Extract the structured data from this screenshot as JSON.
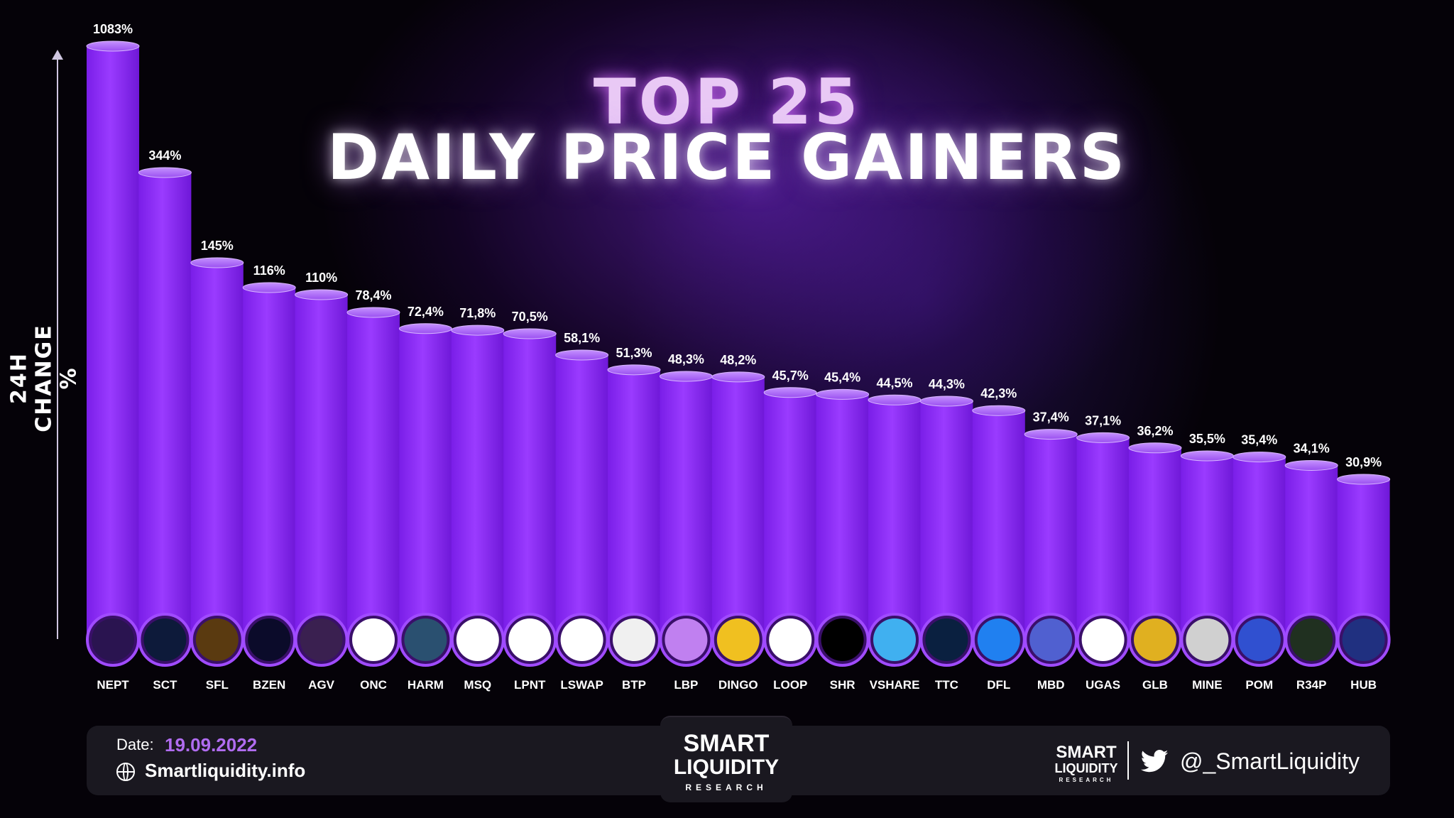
{
  "title_line1": "TOP 25",
  "title_line2": "DAILY PRICE GAINERS",
  "footer": {
    "date_label": "Date:",
    "date_value": "19.09.2022",
    "website": "Smartliquidity.info",
    "logo_line1": "SMART",
    "logo_line2": "LIQUIDITY",
    "logo_line3": "RESEARCH",
    "twitter_handle": "@_SmartLiquidity"
  },
  "colors": {
    "bar": "#8f2ef6",
    "bar_light": "#b372ff",
    "accent": "#b06cf0",
    "background": "#050208"
  },
  "chart_data": {
    "type": "bar",
    "title": "TOP 25 DAILY PRICE GAINERS",
    "ylabel": "24H CHANGE %",
    "xlabel": "",
    "categories": [
      "NEPT",
      "SCT",
      "SFL",
      "BZEN",
      "AGV",
      "ONC",
      "HARM",
      "MSQ",
      "LPNT",
      "LSWAP",
      "BTP",
      "LBP",
      "DINGO",
      "LOOP",
      "SHR",
      "VSHARE",
      "TTC",
      "DFL",
      "MBD",
      "UGAS",
      "GLB",
      "MINE",
      "POM",
      "R34P",
      "HUB"
    ],
    "values": [
      1083,
      344,
      145,
      116,
      110,
      78.4,
      72.4,
      71.8,
      70.5,
      58.1,
      51.3,
      48.3,
      48.2,
      45.7,
      45.4,
      44.5,
      44.3,
      42.3,
      37.4,
      37.1,
      36.2,
      35.5,
      35.4,
      34.1,
      30.9
    ],
    "value_labels": [
      "1083%",
      "344%",
      "145%",
      "116%",
      "110%",
      "78,4%",
      "72,4%",
      "71,8%",
      "70,5%",
      "58,1%",
      "51,3%",
      "48,3%",
      "48,2%",
      "45,7%",
      "45,4%",
      "44,5%",
      "44,3%",
      "42,3%",
      "37,4%",
      "37,1%",
      "36,2%",
      "35,5%",
      "35,4%",
      "34,1%",
      "30,9%"
    ],
    "logo_colors": [
      "#2a1450",
      "#0d1a3a",
      "#5a3a10",
      "#0b0b2a",
      "#3a2050",
      "#ffffff",
      "#2a5070",
      "#ffffff",
      "#ffffff",
      "#ffffff",
      "#f0f0f0",
      "#c080f0",
      "#f0c020",
      "#ffffff",
      "#000000",
      "#40b0f0",
      "#0a2040",
      "#2080f0",
      "#5060d0",
      "#ffffff",
      "#e0b020",
      "#d0d0d0",
      "#3050d0",
      "#203020",
      "#203080"
    ],
    "legend": "none",
    "grid": false
  }
}
